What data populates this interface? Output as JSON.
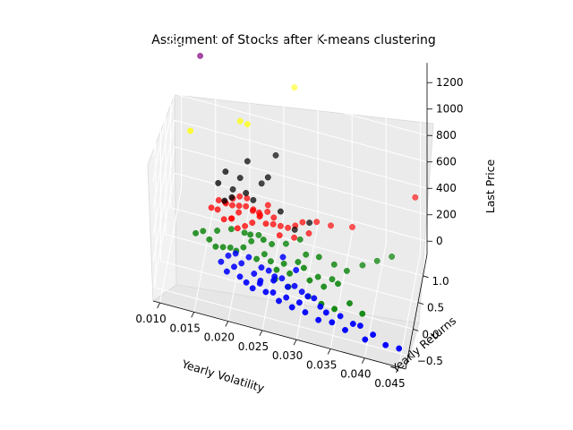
{
  "chart_data": {
    "type": "scatter3d",
    "title": "Assigment of Stocks after K-means clustering",
    "xlabel": "Yearly Volatility",
    "ylabel": "Yearly Returns",
    "zlabel": "Last Price",
    "x_ticks": [
      "0.010",
      "0.015",
      "0.020",
      "0.025",
      "0.030",
      "0.035",
      "0.040",
      "0.045"
    ],
    "y_ticks": [
      "−0.5",
      "0.0",
      "0.5",
      "1.0"
    ],
    "z_ticks": [
      "0",
      "200",
      "400",
      "600",
      "800",
      "1000",
      "1200"
    ],
    "grid": true,
    "clusters": [
      {
        "color": "#0000ff",
        "points": [
          [
            0.018,
            -0.1,
            60
          ],
          [
            0.019,
            -0.2,
            40
          ],
          [
            0.02,
            -0.15,
            70
          ],
          [
            0.021,
            -0.25,
            50
          ],
          [
            0.022,
            -0.3,
            40
          ],
          [
            0.023,
            -0.35,
            30
          ],
          [
            0.024,
            -0.3,
            60
          ],
          [
            0.025,
            -0.4,
            50
          ],
          [
            0.026,
            -0.35,
            40
          ],
          [
            0.027,
            -0.45,
            30
          ],
          [
            0.028,
            -0.4,
            50
          ],
          [
            0.029,
            -0.5,
            30
          ],
          [
            0.03,
            -0.45,
            60
          ],
          [
            0.031,
            -0.55,
            40
          ],
          [
            0.033,
            -0.6,
            30
          ],
          [
            0.035,
            -0.6,
            40
          ],
          [
            0.037,
            -0.65,
            30
          ],
          [
            0.04,
            -0.7,
            20
          ],
          [
            0.043,
            -0.7,
            20
          ],
          [
            0.045,
            -0.72,
            30
          ],
          [
            0.038,
            -0.55,
            50
          ],
          [
            0.034,
            -0.5,
            60
          ],
          [
            0.032,
            -0.35,
            80
          ],
          [
            0.029,
            -0.25,
            90
          ],
          [
            0.026,
            -0.2,
            100
          ],
          [
            0.024,
            -0.15,
            120
          ],
          [
            0.022,
            -0.05,
            130
          ],
          [
            0.02,
            0.0,
            110
          ],
          [
            0.025,
            -0.1,
            90
          ],
          [
            0.027,
            -0.15,
            80
          ],
          [
            0.028,
            -0.25,
            70
          ],
          [
            0.031,
            -0.3,
            60
          ],
          [
            0.033,
            -0.4,
            50
          ],
          [
            0.03,
            -0.2,
            40
          ],
          [
            0.023,
            -0.2,
            80
          ],
          [
            0.021,
            -0.1,
            90
          ],
          [
            0.019,
            -0.05,
            100
          ],
          [
            0.026,
            -0.3,
            110
          ],
          [
            0.024,
            -0.25,
            60
          ],
          [
            0.036,
            -0.45,
            40
          ],
          [
            0.041,
            -0.6,
            30
          ],
          [
            0.039,
            -0.5,
            30
          ],
          [
            0.027,
            -0.05,
            200
          ],
          [
            0.029,
            -0.1,
            150
          ]
        ]
      },
      {
        "color": "#008000",
        "points": [
          [
            0.016,
            0.1,
            120
          ],
          [
            0.017,
            0.05,
            100
          ],
          [
            0.018,
            0.1,
            90
          ],
          [
            0.019,
            0.15,
            80
          ],
          [
            0.02,
            0.05,
            110
          ],
          [
            0.021,
            0.1,
            130
          ],
          [
            0.022,
            0.2,
            150
          ],
          [
            0.023,
            0.05,
            90
          ],
          [
            0.024,
            0.15,
            100
          ],
          [
            0.025,
            0.1,
            80
          ],
          [
            0.026,
            0.0,
            70
          ],
          [
            0.027,
            0.05,
            110
          ],
          [
            0.028,
            -0.05,
            90
          ],
          [
            0.029,
            0.1,
            130
          ],
          [
            0.03,
            0.0,
            140
          ],
          [
            0.031,
            -0.1,
            100
          ],
          [
            0.032,
            0.05,
            80
          ],
          [
            0.033,
            -0.05,
            60
          ],
          [
            0.034,
            0.1,
            70
          ],
          [
            0.035,
            0.0,
            90
          ],
          [
            0.036,
            0.2,
            120
          ],
          [
            0.038,
            0.4,
            110
          ],
          [
            0.04,
            0.5,
            130
          ],
          [
            0.042,
            0.6,
            150
          ],
          [
            0.034,
            0.3,
            100
          ],
          [
            0.03,
            0.2,
            160
          ],
          [
            0.027,
            0.25,
            180
          ],
          [
            0.025,
            0.2,
            170
          ],
          [
            0.023,
            0.25,
            190
          ],
          [
            0.021,
            0.2,
            200
          ],
          [
            0.019,
            0.25,
            180
          ],
          [
            0.017,
            0.2,
            160
          ],
          [
            0.015,
            0.15,
            150
          ],
          [
            0.014,
            0.1,
            140
          ],
          [
            0.026,
            -0.15,
            60
          ],
          [
            0.028,
            -0.2,
            50
          ],
          [
            0.031,
            -0.25,
            40
          ],
          [
            0.033,
            -0.3,
            30
          ],
          [
            0.029,
            0.3,
            220
          ],
          [
            0.032,
            0.15,
            190
          ],
          [
            0.037,
            -0.2,
            50
          ],
          [
            0.039,
            -0.3,
            40
          ],
          [
            0.035,
            -0.35,
            40
          ],
          [
            0.024,
            0.05,
            250
          ],
          [
            0.022,
            0.1,
            240
          ]
        ]
      },
      {
        "color": "#ff0000",
        "points": [
          [
            0.018,
            0.3,
            350
          ],
          [
            0.019,
            0.35,
            320
          ],
          [
            0.02,
            0.3,
            300
          ],
          [
            0.021,
            0.35,
            340
          ],
          [
            0.022,
            0.4,
            310
          ],
          [
            0.023,
            0.35,
            290
          ],
          [
            0.024,
            0.3,
            270
          ],
          [
            0.019,
            0.25,
            260
          ],
          [
            0.02,
            0.4,
            380
          ],
          [
            0.021,
            0.45,
            360
          ],
          [
            0.017,
            0.35,
            330
          ],
          [
            0.018,
            0.4,
            300
          ],
          [
            0.022,
            0.3,
            250
          ],
          [
            0.023,
            0.4,
            280
          ],
          [
            0.024,
            0.45,
            300
          ],
          [
            0.025,
            0.35,
            260
          ],
          [
            0.026,
            0.4,
            240
          ],
          [
            0.027,
            0.45,
            220
          ],
          [
            0.028,
            0.5,
            230
          ],
          [
            0.029,
            0.55,
            250
          ],
          [
            0.031,
            0.6,
            260
          ],
          [
            0.033,
            0.65,
            240
          ],
          [
            0.036,
            0.75,
            230
          ],
          [
            0.03,
            0.5,
            200
          ],
          [
            0.028,
            0.4,
            180
          ],
          [
            0.026,
            0.3,
            210
          ],
          [
            0.02,
            0.2,
            220
          ],
          [
            0.019,
            0.3,
            240
          ],
          [
            0.021,
            0.25,
            230
          ],
          [
            0.018,
            0.2,
            260
          ],
          [
            0.02,
            0.35,
            330
          ],
          [
            0.019,
            0.4,
            350
          ],
          [
            0.022,
            0.35,
            320
          ],
          [
            0.023,
            0.3,
            340
          ],
          [
            0.025,
            0.4,
            290
          ],
          [
            0.016,
            0.3,
            280
          ],
          [
            0.017,
            0.25,
            300
          ],
          [
            0.024,
            0.5,
            330
          ],
          [
            0.045,
            0.9,
            520
          ]
        ]
      },
      {
        "color": "#000000",
        "points": [
          [
            0.017,
            0.3,
            480
          ],
          [
            0.018,
            0.35,
            560
          ],
          [
            0.019,
            0.4,
            420
          ],
          [
            0.02,
            0.45,
            500
          ],
          [
            0.021,
            0.5,
            620
          ],
          [
            0.022,
            0.4,
            380
          ],
          [
            0.023,
            0.55,
            460
          ],
          [
            0.024,
            0.5,
            540
          ],
          [
            0.025,
            0.6,
            680
          ],
          [
            0.019,
            0.3,
            400
          ],
          [
            0.021,
            0.35,
            440
          ],
          [
            0.018,
            0.25,
            380
          ],
          [
            0.028,
            0.45,
            220
          ],
          [
            0.03,
            0.55,
            260
          ],
          [
            0.026,
            0.4,
            350
          ]
        ]
      },
      {
        "color": "#800080",
        "points": [
          [
            0.014,
            0.55,
            1300
          ]
        ]
      },
      {
        "color": "#ffff00",
        "points": [
          [
            0.013,
            0.25,
            840
          ],
          [
            0.02,
            0.45,
            930
          ],
          [
            0.021,
            0.5,
            900
          ],
          [
            0.027,
            1.1,
            1020
          ]
        ]
      }
    ]
  }
}
